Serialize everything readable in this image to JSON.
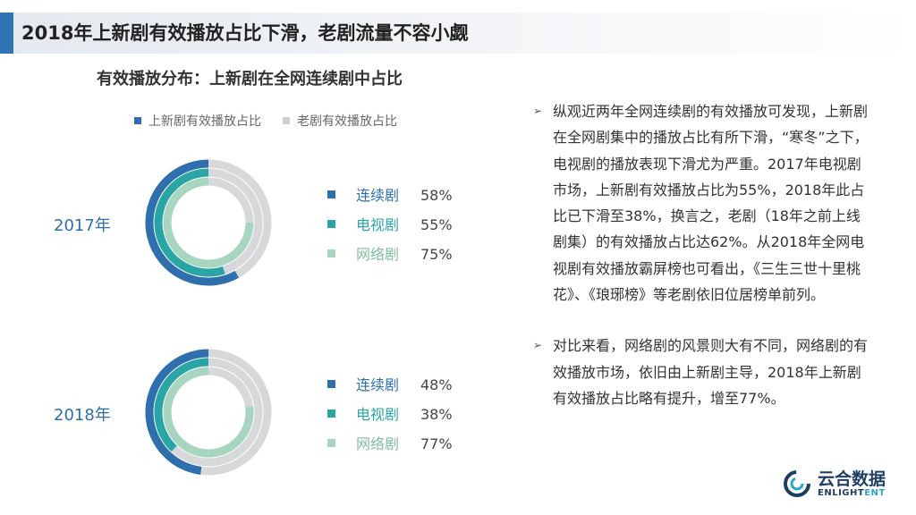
{
  "header": {
    "title": "2018年上新剧有效播放占比下滑，老剧流量不容小觑"
  },
  "chart_data": {
    "type": "donut",
    "title": "有效播放分布：上新剧在全网连续剧中占比",
    "legend": [
      {
        "name": "上新剧有效播放占比",
        "color": "#2f6fad"
      },
      {
        "name": "老剧有效播放占比",
        "color": "#cfd1d3"
      }
    ],
    "legend_position": "top",
    "rings": [
      {
        "name": "连续剧",
        "color": "#2f6fad",
        "label_color": "#2f6fad"
      },
      {
        "name": "电视剧",
        "color": "#2aa5a5",
        "label_color": "#2aa5a5"
      },
      {
        "name": "网络剧",
        "color": "#a8d5c0",
        "label_color": "#7fbf9e"
      }
    ],
    "groups": [
      {
        "year": "2017年",
        "values": [
          58,
          55,
          75
        ],
        "labels": [
          "58%",
          "55%",
          "75%"
        ]
      },
      {
        "year": "2018年",
        "values": [
          48,
          38,
          77
        ],
        "labels": [
          "48%",
          "38%",
          "77%"
        ]
      }
    ],
    "remainder_color": "#d6d8da"
  },
  "bullets": [
    "纵观近两年全网连续剧的有效播放可发现，上新剧在全网剧集中的播放占比有所下滑，“寒冬”之下，电视剧的播放表现下滑尤为严重。2017年电视剧市场，上新剧有效播放占比为55%，2018年此占比已下滑至38%，换言之，老剧（18年之前上线剧集）的有效播放占比达62%。从2018年全网电视剧有效播放霸屏榜也可看出，《三生三世十里桃花》、《琅琊榜》等老剧依旧位居榜单前列。",
    "对比来看，网络剧的风景则大有不同，网络剧的有效播放市场，依旧由上新剧主导，2018年上新剧有效播放占比略有提升，增至77%。"
  ],
  "logo": {
    "cn": "云合数据",
    "en_main": "ENLIGHT",
    "en_accent": "ENT"
  }
}
